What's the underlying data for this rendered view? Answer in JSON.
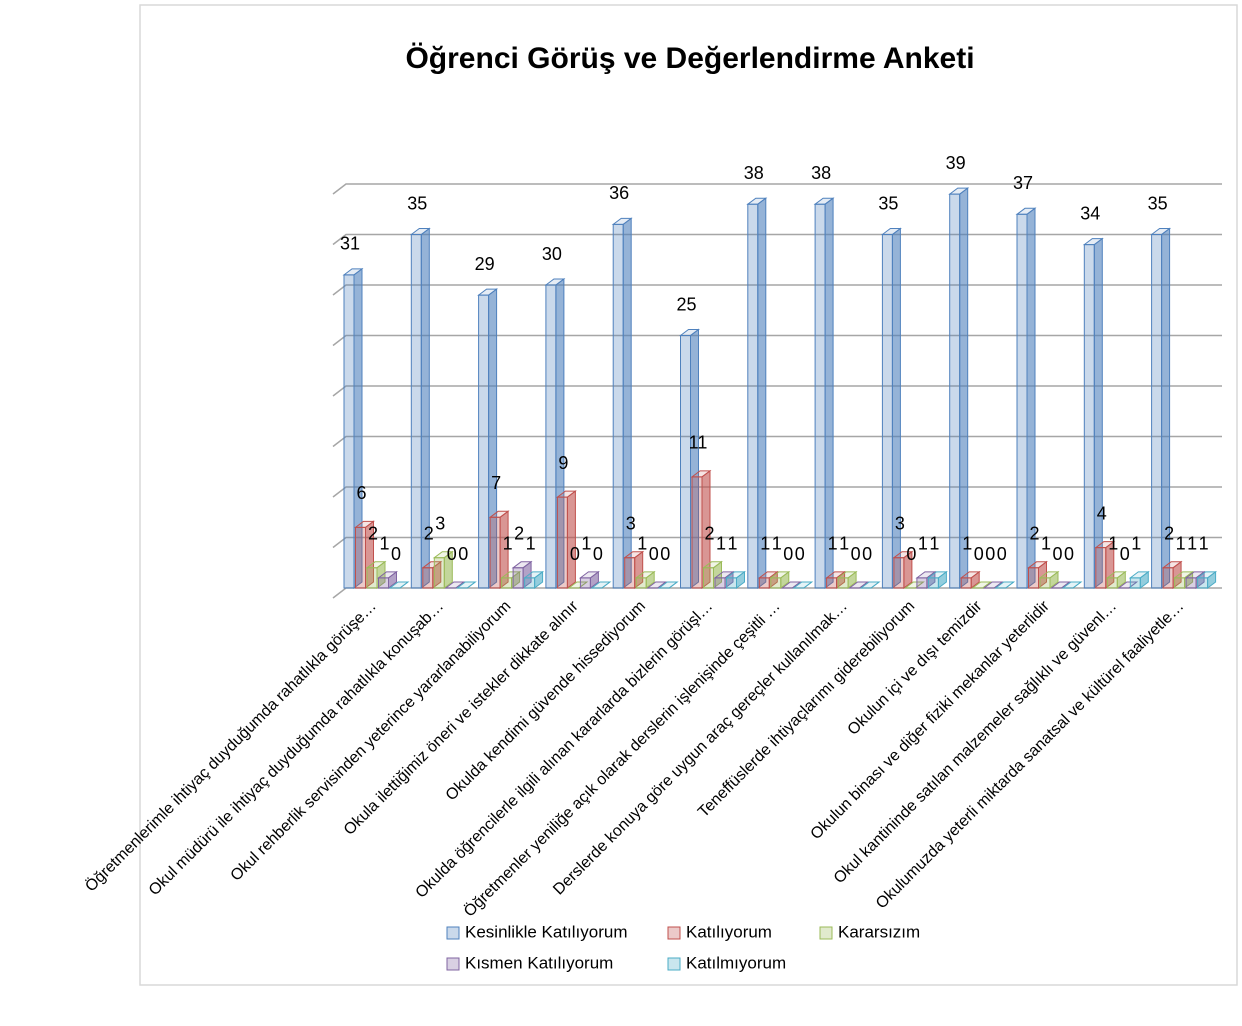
{
  "chart_data": {
    "type": "bar3d",
    "title": "Öğrenci Görüş ve Değerlendirme Anketi",
    "categories": [
      "Öğretmenlerimle ihtiyaç duyduğumda rahatlıkla görüşe…",
      "Okul müdürü ile ihtiyaç duyduğumda rahatlıkla konuşab…",
      "Okul rehberlik servisinden yeterince yararlanabiliyorum",
      "Okula ilettiğimiz öneri ve istekler dikkate alınır",
      "Okulda kendimi güvende hissediyorum",
      "Okulda öğrencilerle ilgili alınan kararlarda bizlerin görüşl…",
      "Öğretmenler yeniliğe açık olarak derslerin işlenişinde çeşitli …",
      "Derslerde konuya göre uygun araç gereçler kullanılmak…",
      "Teneffüslerde ihtiyaçlarımı giderebiliyorum",
      "Okulun içi ve dışı temizdir",
      "Okulun binası ve diğer fiziki mekanlar yeterlidir",
      "Okul kantininde satılan malzemeler sağlıklı ve güvenl…",
      "Okulumuzda yeterli miktarda sanatsal ve kültürel faaliyetle…"
    ],
    "series": [
      {
        "name": "Kesinlikle Katılıyorum",
        "color": "#4f81bd",
        "values": [
          31,
          35,
          29,
          30,
          36,
          25,
          38,
          38,
          35,
          39,
          37,
          34,
          35
        ]
      },
      {
        "name": "Katılıyorum",
        "color": "#c0504d",
        "values": [
          6,
          2,
          7,
          9,
          3,
          11,
          1,
          1,
          3,
          1,
          2,
          4,
          2
        ]
      },
      {
        "name": "Kararsızım",
        "color": "#9bbb59",
        "values": [
          2,
          3,
          1,
          0,
          1,
          2,
          1,
          1,
          0,
          0,
          1,
          1,
          1
        ]
      },
      {
        "name": "Kısmen Katılıyorum",
        "color": "#8064a2",
        "values": [
          1,
          0,
          2,
          1,
          0,
          1,
          0,
          0,
          1,
          0,
          0,
          0,
          1
        ]
      },
      {
        "name": "Katılmıyorum",
        "color": "#4bacc6",
        "values": [
          0,
          0,
          1,
          0,
          0,
          1,
          0,
          0,
          1,
          0,
          0,
          1,
          1
        ]
      }
    ],
    "ylim": [
      0,
      40
    ],
    "yticks": [
      0,
      5,
      10,
      15,
      20,
      25,
      30,
      35,
      40
    ],
    "grid": true,
    "legend": "bottom"
  }
}
